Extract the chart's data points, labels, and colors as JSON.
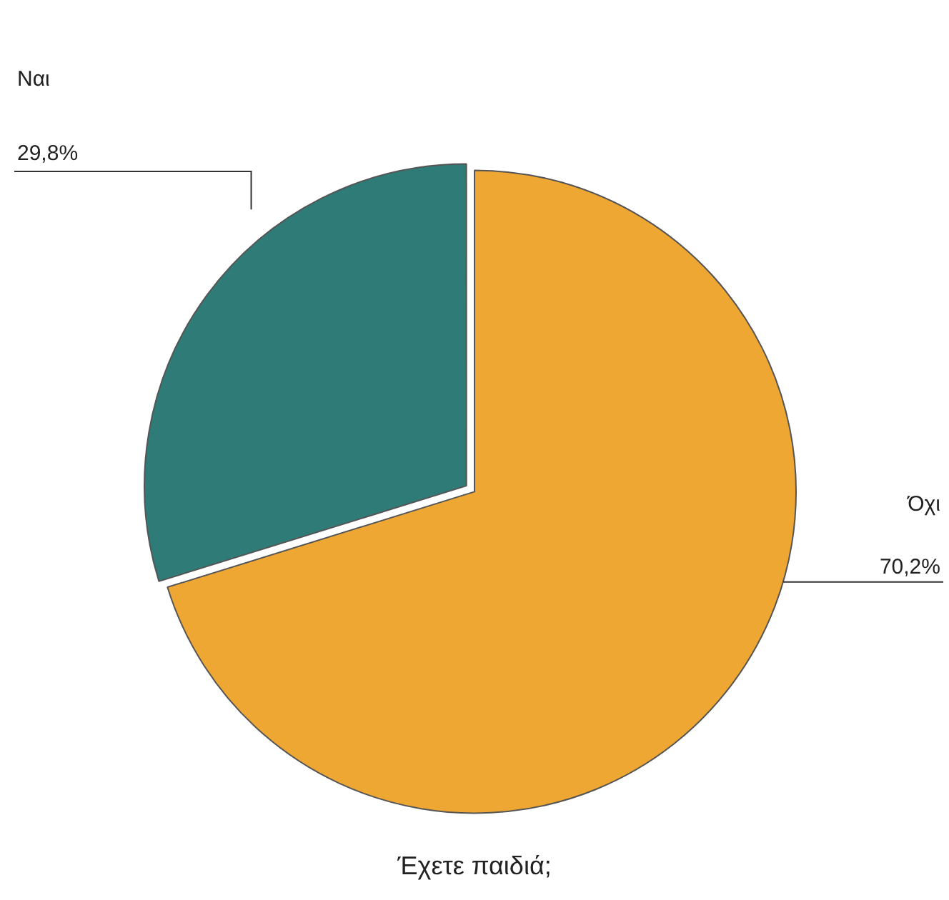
{
  "chart_data": {
    "type": "pie",
    "title": "Έχετε παιδιά;",
    "categories": [
      "Όχι",
      "Ναι"
    ],
    "values": [
      70.2,
      29.8
    ],
    "colors": [
      "#eea733",
      "#2e7b78"
    ],
    "value_labels": [
      "70,2%",
      "29,8%"
    ],
    "legend": false
  }
}
